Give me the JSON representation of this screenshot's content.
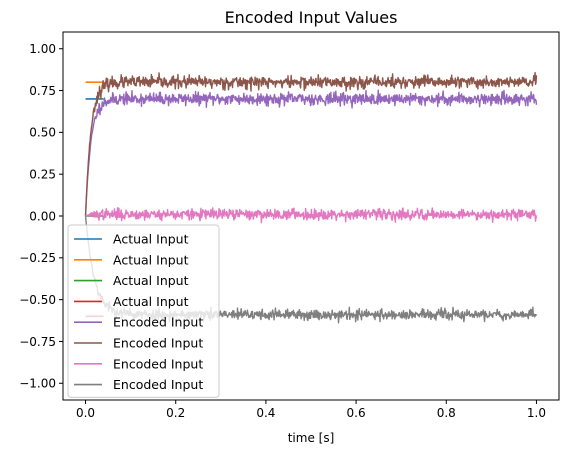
{
  "chart_data": {
    "type": "line",
    "title": "Encoded Input Values",
    "xlabel": "time [s]",
    "ylabel": "",
    "xlim": [
      -0.05,
      1.05
    ],
    "ylim": [
      -1.1,
      1.1
    ],
    "x_ticks": [
      0.0,
      0.2,
      0.4,
      0.6,
      0.8,
      1.0
    ],
    "x_tick_labels": [
      "0.0",
      "0.2",
      "0.4",
      "0.6",
      "0.8",
      "1.0"
    ],
    "y_ticks": [
      -1.0,
      -0.75,
      -0.5,
      -0.25,
      0.0,
      0.25,
      0.5,
      0.75,
      1.0
    ],
    "y_tick_labels": [
      "−1.00",
      "−0.75",
      "−0.50",
      "−0.25",
      "0.00",
      "0.25",
      "0.50",
      "0.75",
      "1.00"
    ],
    "grid": false,
    "legend_position": "lower-left",
    "series": [
      {
        "name": "Actual Input",
        "kind": "actual",
        "color": "#1f77b4",
        "x": [
          0.0,
          0.04
        ],
        "y": [
          0.7,
          0.7
        ]
      },
      {
        "name": "Actual Input",
        "kind": "actual",
        "color": "#ff7f0e",
        "x": [
          0.0,
          0.04
        ],
        "y": [
          0.8,
          0.8
        ]
      },
      {
        "name": "Actual Input",
        "kind": "actual",
        "color": "#2ca02c",
        "x": [
          0.0,
          0.04
        ],
        "y": [
          0.0,
          0.0
        ]
      },
      {
        "name": "Actual Input",
        "kind": "actual",
        "color": "#d62728",
        "x": [
          0.0,
          0.04
        ],
        "y": [
          -0.6,
          -0.6
        ]
      },
      {
        "name": "Encoded Input",
        "kind": "encoded",
        "color": "#9467bd",
        "target": 0.7,
        "tau": 0.012,
        "noise": 0.018,
        "seed": 11,
        "x_range": [
          0.0,
          1.0
        ],
        "n_points": 1000
      },
      {
        "name": "Encoded Input",
        "kind": "encoded",
        "color": "#8c564b",
        "target": 0.8,
        "tau": 0.012,
        "noise": 0.018,
        "seed": 23,
        "x_range": [
          0.0,
          1.0
        ],
        "n_points": 1000
      },
      {
        "name": "Encoded Input",
        "kind": "encoded",
        "color": "#e377c2",
        "target": 0.01,
        "tau": 0.012,
        "noise": 0.016,
        "seed": 37,
        "x_range": [
          0.0,
          1.0
        ],
        "n_points": 1000
      },
      {
        "name": "Encoded Input",
        "kind": "encoded",
        "color": "#7f7f7f",
        "target": -0.59,
        "tau": 0.02,
        "noise": 0.016,
        "seed": 53,
        "x_range": [
          0.0,
          1.0
        ],
        "n_points": 1000
      }
    ]
  }
}
